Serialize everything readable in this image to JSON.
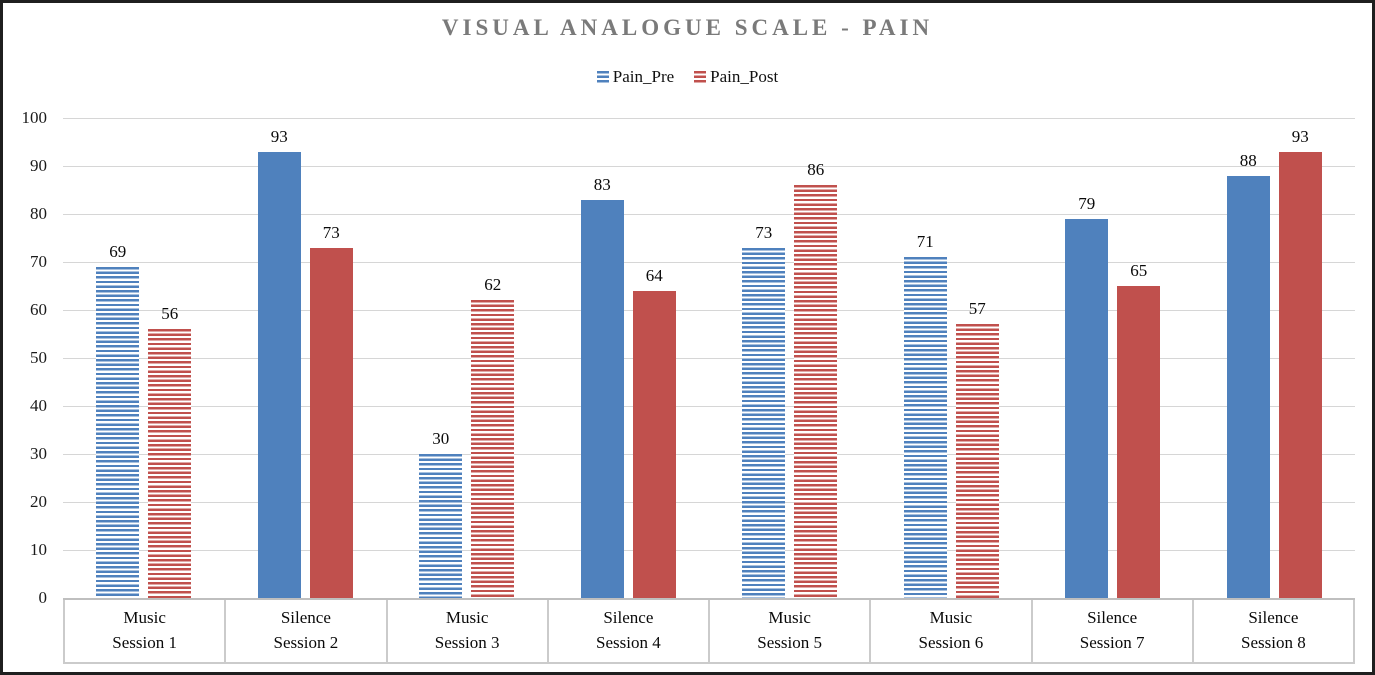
{
  "title": "VISUAL ANALOGUE SCALE - PAIN",
  "legend": {
    "pre_label": "Pain_Pre",
    "post_label": "Pain_Post"
  },
  "colors": {
    "pre": "#4F81BD",
    "post": "#C0504D",
    "title_gray": "#7A7A7A",
    "gridline": "#D6D6D6",
    "axis_band_border": "#CBCBCB"
  },
  "chart_data": {
    "type": "bar",
    "title": "VISUAL ANALOGUE SCALE - PAIN",
    "categories": [
      {
        "condition": "Music",
        "session": "Session 1",
        "fill_pattern": "striped"
      },
      {
        "condition": "Silence",
        "session": "Session 2",
        "fill_pattern": "solid"
      },
      {
        "condition": "Music",
        "session": "Session 3",
        "fill_pattern": "striped"
      },
      {
        "condition": "Silence",
        "session": "Session 4",
        "fill_pattern": "solid"
      },
      {
        "condition": "Music",
        "session": "Session 5",
        "fill_pattern": "striped"
      },
      {
        "condition": "Music",
        "session": "Session 6",
        "fill_pattern": "striped"
      },
      {
        "condition": "Silence",
        "session": "Session 7",
        "fill_pattern": "solid"
      },
      {
        "condition": "Silence",
        "session": "Session 8",
        "fill_pattern": "solid"
      }
    ],
    "series": [
      {
        "name": "Pain_Pre",
        "color": "#4F81BD",
        "values": [
          69,
          93,
          30,
          83,
          73,
          71,
          79,
          88
        ]
      },
      {
        "name": "Pain_Post",
        "color": "#C0504D",
        "values": [
          56,
          73,
          62,
          64,
          86,
          57,
          65,
          93
        ]
      }
    ],
    "ylim": [
      0,
      100
    ],
    "yticks": [
      0,
      10,
      20,
      30,
      40,
      50,
      60,
      70,
      80,
      90,
      100
    ],
    "grid": true,
    "legend_position": "top",
    "data_labels": true
  }
}
